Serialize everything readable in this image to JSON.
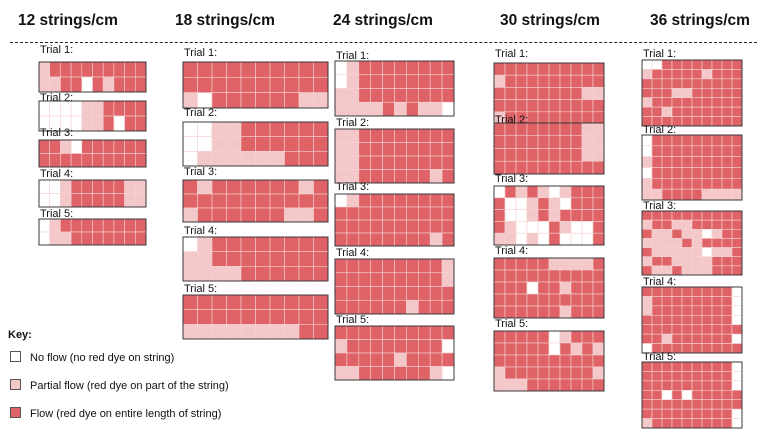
{
  "colors": {
    "none": "#ffffff",
    "partial": "#f4c7c8",
    "flow": "#df6266",
    "grid_line": "#f6d2d3",
    "border": "#3a3a3a"
  },
  "columns": [
    {
      "header": "12 strings/cm",
      "trials": [
        {
          "label": "Trial 1:",
          "grid": [
            "PFFFFFFFFF",
            "PPFFNFPFFF"
          ]
        },
        {
          "label": "Trial 2:",
          "grid": [
            "NNNNPPFFFF",
            "NNNNPPFNFF"
          ]
        },
        {
          "label": "Trial 3:",
          "grid": [
            "FFPNFFFFFF",
            "FFFFFFFFFF"
          ]
        },
        {
          "label": "Trial 4:",
          "grid": [
            "NNPFFFFFPP",
            "NNPFFFFFPP"
          ]
        },
        {
          "label": "Trial 5:",
          "grid": [
            "NPFFFFFFFF",
            "NPPFFFFFFF"
          ]
        }
      ]
    },
    {
      "header": "18 strings/cm",
      "trials": [
        {
          "label": "Trial 1:",
          "grid": [
            "FFFFFFFFFF",
            "FFFFFFFFFF",
            "PNFFFFFFPP"
          ]
        },
        {
          "label": "Trial 2:",
          "grid": [
            "NNPPFFFFFF",
            "NNPPFFFFFF",
            "NPPPPPPFFF"
          ]
        },
        {
          "label": "Trial 3:",
          "grid": [
            "FPFFFFFFPF",
            "FFFFFFFFFF",
            "PFFFFFFPPF"
          ]
        },
        {
          "label": "Trial 4:",
          "grid": [
            "NPFFFFFFFF",
            "PPFFFFFFFF",
            "PPPPFFFFFF"
          ]
        },
        {
          "label": "Trial 5:",
          "grid": [
            "FFFFFFFFFF",
            "FFFFFFFFFF",
            "PPPPPPPPFF"
          ]
        }
      ]
    },
    {
      "header": "24 strings/cm",
      "trials": [
        {
          "label": "Trial 1:",
          "grid": [
            "NPFFFFFFFF",
            "NPFFFFFFFF",
            "PPFFFFFFFF",
            "PPPPFPFPPN"
          ]
        },
        {
          "label": "Trial 2:",
          "grid": [
            "PPFFFFFFFF",
            "PPFFFFFFFF",
            "PPFFFFFFFF",
            "PPFFFFFFPF"
          ]
        },
        {
          "label": "Trial 3:",
          "grid": [
            "NPFFFFFFFF",
            "FFFFFFFFFF",
            "FFFFFFFFFF",
            "FFFFFFFFPF"
          ]
        },
        {
          "label": "Trial 4:",
          "grid": [
            "FFFFFFFFFP",
            "FFFFFFFFFP",
            "FFFFFFFFFF",
            "FFFFFFPFFF"
          ]
        },
        {
          "label": "Trial 5:",
          "grid": [
            "FFFFFFFFFF",
            "PFFFFFFFFN",
            "FFFFFPFFFF",
            "PPFFFFFFPN"
          ]
        }
      ]
    },
    {
      "header": "30 strings/cm",
      "trials": [
        {
          "label": "Trial 1:",
          "grid": [
            "FFFFFFFFFF",
            "PFFFFFFFFF",
            "FFFFFFFFPP",
            "FFFFFFFFFF",
            "PFFFFFFFFF"
          ]
        },
        {
          "label": "Trial 2:",
          "grid": [
            "FFFFFFFFPP",
            "FFFFFFFFPP",
            "FFFFFFFFPP",
            "FFFFFFFFFF"
          ]
        },
        {
          "label": "Trial 3:",
          "grid": [
            "NFPFPNPFFF",
            "FNNPFPNFFF",
            "FNNPFPFFFF",
            "FPNNNFPNNF",
            "PPNPNFNNNF"
          ]
        },
        {
          "label": "Trial 4:",
          "grid": [
            "FFFFFPPPPF",
            "FFFFFFFFFF",
            "FFFNFFPFFF",
            "FFFFFFFFFF",
            "FFFFFFPFFF"
          ]
        },
        {
          "label": "Trial 5:",
          "grid": [
            "FFFFFNPFFF",
            "FFFFFNFPFP",
            "FFFFFFFFFF",
            "PFFFFFFFFP",
            "PPPFFFFFFF"
          ]
        }
      ]
    },
    {
      "header": "36 strings/cm",
      "trials": [
        {
          "label": "Trial 1:",
          "grid": [
            "NNFFFFFFFF",
            "PFFFFFPFFF",
            "FFFFFFFFFF",
            "FFFPPFFFFF",
            "PFFFFFFFFF",
            "FFPFFFFFFF",
            "FFFFFFFFFF"
          ]
        },
        {
          "label": "Trial 2:",
          "grid": [
            "NFFFFFFFFF",
            "NFFFFFFFFF",
            "PFFFFFFFFF",
            "NFFFFFFFFF",
            "PFFFFFFFFF",
            "PPFFFFPPPP"
          ]
        },
        {
          "label": "Trial 3:",
          "grid": [
            "FFFFFFFFFF",
            "PFFPPFFFFF",
            "FPPFPPNPFF",
            "PPPPFPFFFF",
            "FPPPPPNPPF",
            "PFFPPPPFFF",
            "FPPFPPPFFF"
          ]
        },
        {
          "label": "Trial 4:",
          "grid": [
            "FFFFFFFFFN",
            "PFFFFFFFFN",
            "PFFFFFFFFN",
            "FFFFFFFFFN",
            "FFFFFFFFFF",
            "FFPFFFFFFN",
            "NFFFFFFFFF"
          ]
        },
        {
          "label": "Trial 5:",
          "grid": [
            "FFFFFFFFFN",
            "FFFFFFFFFN",
            "FFFFFFFFFN",
            "FFNFNFFFFF",
            "FFFFFFFFFF",
            "FFFFFFFFFN",
            "PFFFFFFFFN"
          ]
        }
      ]
    }
  ],
  "key": {
    "title": "Key:",
    "items": [
      {
        "state": "none",
        "label": "No flow (no red dye on string)"
      },
      {
        "state": "partial",
        "label": "Partial flow (red dye on part of the string)"
      },
      {
        "state": "flow",
        "label": "Flow (red dye on entire length of string)"
      }
    ]
  }
}
